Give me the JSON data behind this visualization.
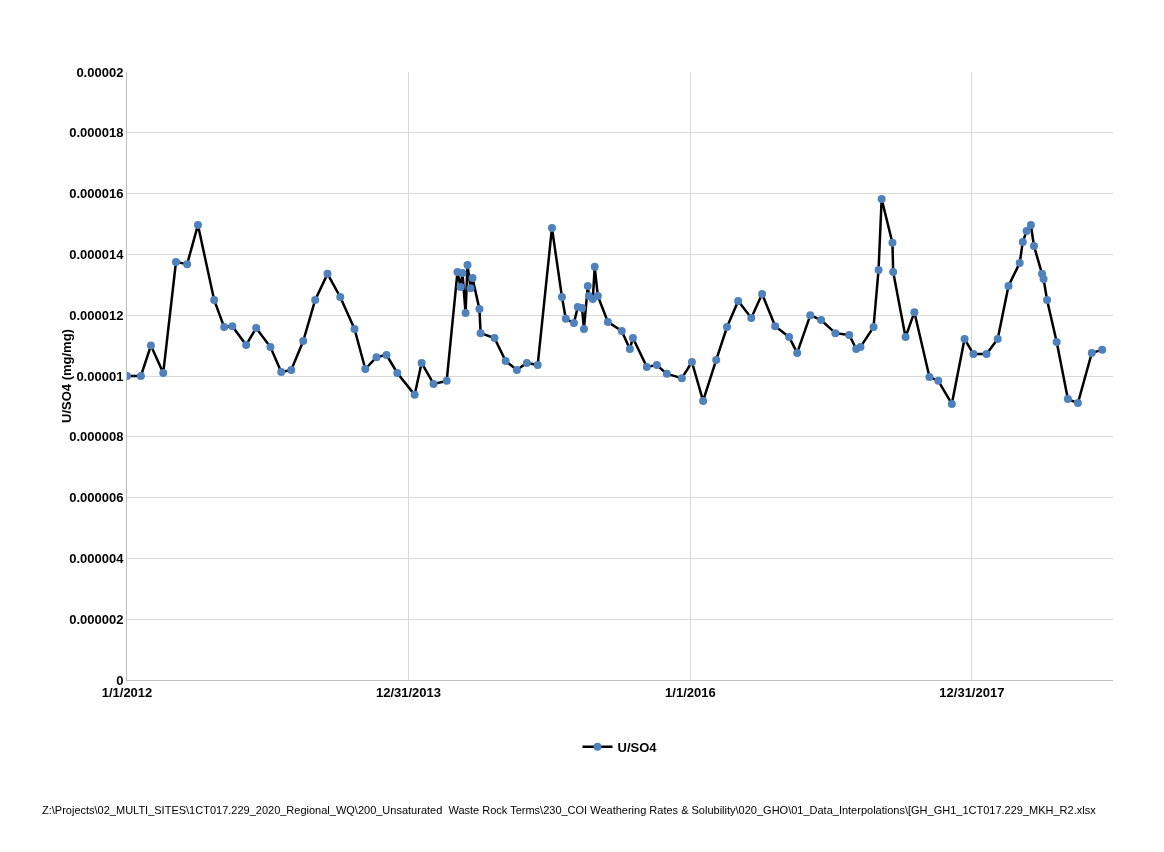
{
  "chart_data": {
    "type": "line",
    "ylabel": "U/SO4 (mg/mg)",
    "x": [
      "2012-01-01",
      "2012-02-06",
      "2012-03-03",
      "2012-04-04",
      "2012-05-07",
      "2012-06-05",
      "2012-07-03",
      "2012-08-14",
      "2012-09-09",
      "2012-09-30",
      "2012-11-05",
      "2012-12-01",
      "2013-01-07",
      "2013-02-04",
      "2013-03-02",
      "2013-04-02",
      "2013-05-03",
      "2013-06-04",
      "2013-07-07",
      "2013-08-13",
      "2013-09-10",
      "2013-10-09",
      "2013-11-04",
      "2013-12-02",
      "2014-01-16",
      "2014-02-03",
      "2014-03-06",
      "2014-04-09",
      "2014-05-07",
      "2014-05-15",
      "2014-05-20",
      "2014-05-28",
      "2014-06-02",
      "2014-06-10",
      "2014-06-15",
      "2014-07-03",
      "2014-07-06",
      "2014-08-11",
      "2014-09-09",
      "2014-10-08",
      "2014-11-03",
      "2014-12-01",
      "2015-01-07",
      "2015-02-02",
      "2015-02-12",
      "2015-03-05",
      "2015-03-15",
      "2015-03-26",
      "2015-03-31",
      "2015-04-10",
      "2015-04-13",
      "2015-04-23",
      "2015-04-28",
      "2015-05-06",
      "2015-06-01",
      "2015-07-07",
      "2015-07-28",
      "2015-08-05",
      "2015-09-10",
      "2015-10-06",
      "2015-11-01",
      "2015-12-10",
      "2016-01-05",
      "2016-02-03",
      "2016-03-08",
      "2016-04-05",
      "2016-05-04",
      "2016-06-07",
      "2016-07-05",
      "2016-08-08",
      "2016-09-13",
      "2016-10-04",
      "2016-11-07",
      "2016-12-05",
      "2017-01-11",
      "2017-02-16",
      "2017-03-06",
      "2017-03-17",
      "2017-04-20",
      "2017-05-03",
      "2017-05-11",
      "2017-06-08",
      "2017-06-10",
      "2017-07-12",
      "2017-08-04",
      "2017-09-12",
      "2017-10-05",
      "2017-11-09",
      "2017-12-12",
      "2018-01-04",
      "2018-02-07",
      "2018-03-08",
      "2018-04-05",
      "2018-05-04",
      "2018-05-12",
      "2018-05-22",
      "2018-06-02",
      "2018-06-10",
      "2018-07-01",
      "2018-07-05",
      "2018-07-14",
      "2018-08-08",
      "2018-09-06",
      "2018-10-02",
      "2018-11-07",
      "2018-12-04"
    ],
    "series": [
      {
        "name": "U/SO4",
        "color": "#4f81bd",
        "values": [
          1e-05,
          1e-05,
          1.1e-05,
          1.01e-05,
          1.375e-05,
          1.368e-05,
          1.497e-05,
          1.25e-05,
          1.161e-05,
          1.164e-05,
          1.102e-05,
          1.158e-05,
          1.095e-05,
          1.013e-05,
          1.02e-05,
          1.115e-05,
          1.25e-05,
          1.336e-05,
          1.26e-05,
          1.155e-05,
          1.023e-05,
          1.062e-05,
          1.069e-05,
          1.01e-05,
          9.38e-06,
          1.043e-05,
          9.74e-06,
          9.84e-06,
          1.342e-05,
          1.293e-05,
          1.339e-05,
          1.207e-05,
          1.365e-05,
          1.289e-05,
          1.322e-05,
          1.22e-05,
          1.141e-05,
          1.125e-05,
          1.049e-05,
          1.02e-05,
          1.043e-05,
          1.036e-05,
          1.487e-05,
          1.26e-05,
          1.188e-05,
          1.174e-05,
          1.227e-05,
          1.224e-05,
          1.155e-05,
          1.296e-05,
          1.263e-05,
          1.253e-05,
          1.359e-05,
          1.263e-05,
          1.178e-05,
          1.148e-05,
          1.089e-05,
          1.125e-05,
          1.03e-05,
          1.036e-05,
          1.007e-05,
          9.93e-06,
          1.046e-05,
          9.18e-06,
          1.053e-05,
          1.161e-05,
          1.247e-05,
          1.191e-05,
          1.27e-05,
          1.164e-05,
          1.128e-05,
          1.076e-05,
          1.2e-05,
          1.184e-05,
          1.141e-05,
          1.135e-05,
          1.089e-05,
          1.095e-05,
          1.161e-05,
          1.349e-05,
          1.582e-05,
          1.438e-05,
          1.342e-05,
          1.128e-05,
          1.21e-05,
          9.97e-06,
          9.84e-06,
          9.08e-06,
          1.122e-05,
          1.072e-05,
          1.072e-05,
          1.122e-05,
          1.296e-05,
          1.372e-05,
          1.441e-05,
          1.477e-05,
          1.497e-05,
          1.428e-05,
          1.336e-05,
          1.319e-05,
          1.25e-05,
          1.112e-05,
          9.24e-06,
          9.11e-06,
          1.076e-05,
          1.086e-05
        ]
      }
    ],
    "xlim": [
      "2012-01-01",
      "2019-01-01"
    ],
    "xticks": [
      {
        "value": "2012-01-01",
        "label": "1/1/2012"
      },
      {
        "value": "2013-12-31",
        "label": "12/31/2013"
      },
      {
        "value": "2016-01-01",
        "label": "1/1/2016"
      },
      {
        "value": "2017-12-31",
        "label": "12/31/2017"
      }
    ],
    "ylim": [
      0,
      2e-05
    ],
    "yticks": [
      {
        "value": 0,
        "label": "0"
      },
      {
        "value": 2e-06,
        "label": "0.000002"
      },
      {
        "value": 4e-06,
        "label": "0.000004"
      },
      {
        "value": 6e-06,
        "label": "0.000006"
      },
      {
        "value": 8e-06,
        "label": "0.000008"
      },
      {
        "value": 1e-05,
        "label": "0.00001"
      },
      {
        "value": 1.2e-05,
        "label": "0.000012"
      },
      {
        "value": 1.4e-05,
        "label": "0.000014"
      },
      {
        "value": 1.6e-05,
        "label": "0.000016"
      },
      {
        "value": 1.8e-05,
        "label": "0.000018"
      },
      {
        "value": 2e-05,
        "label": "0.00002"
      }
    ],
    "grid": true,
    "legend": "bottom",
    "marker": "circle",
    "line_style": "solid",
    "annotations": [
      "Z:\\Projects\\02_MULTI_SITES\\1CT017.229_2020_Regional_WQ\\200_Unsaturated  Waste Rock Terms\\230_COI Weathering Rates & Solubility\\020_GHO\\01_Data_Interpolations\\[GH_GH1_1CT017.229_MKH_R2.xlsx"
    ]
  }
}
